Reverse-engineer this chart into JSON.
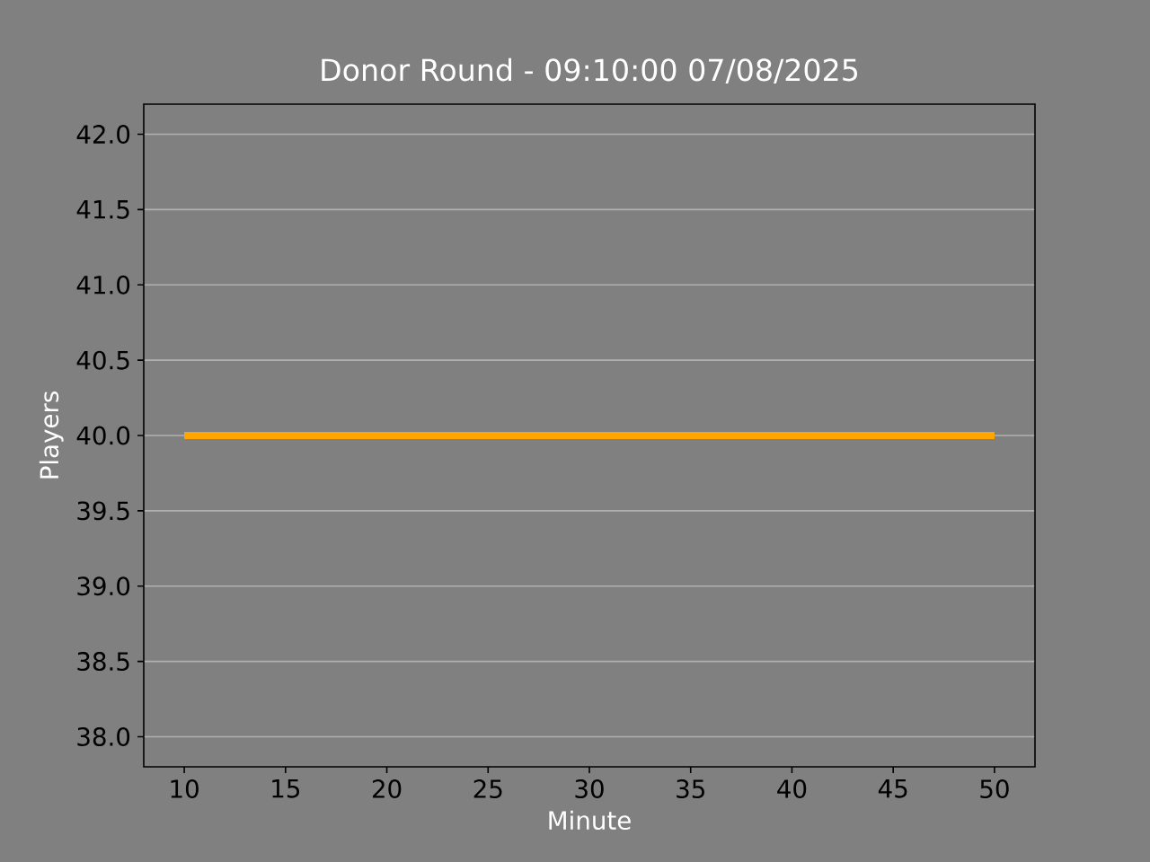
{
  "chart_data": {
    "type": "line",
    "title": "Donor Round - 09:10:00 07/08/2025",
    "xlabel": "Minute",
    "ylabel": "Players",
    "x": [
      10,
      50
    ],
    "series": [
      {
        "color": "#ffa500",
        "values": [
          40,
          40
        ]
      }
    ],
    "xlim": [
      8,
      52
    ],
    "ylim": [
      37.8,
      42.2
    ],
    "xticks": [
      10,
      15,
      20,
      25,
      30,
      35,
      40,
      45,
      50
    ],
    "yticks": [
      {
        "value": 38,
        "label": "38.0"
      },
      {
        "value": 38.5,
        "label": "38.5"
      },
      {
        "value": 39,
        "label": "39.0"
      },
      {
        "value": 39.5,
        "label": "39.5"
      },
      {
        "value": 40,
        "label": "40.0"
      },
      {
        "value": 40.5,
        "label": "40.5"
      },
      {
        "value": 41,
        "label": "41.0"
      },
      {
        "value": 41.5,
        "label": "41.5"
      },
      {
        "value": 42,
        "label": "42.0"
      }
    ],
    "grid": "y",
    "marker": "none",
    "line_style": "solid"
  }
}
